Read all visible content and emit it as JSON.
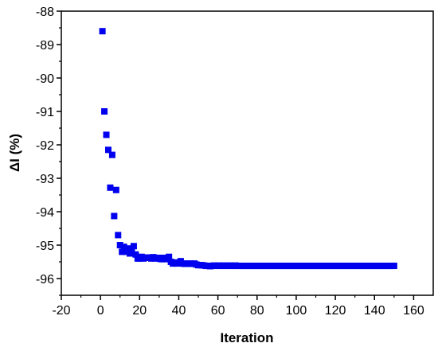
{
  "chart_data": {
    "type": "scatter",
    "xlabel": "Iteration",
    "ylabel": "ΔI (%)",
    "xlim": [
      -20,
      170
    ],
    "ylim": [
      -96.5,
      -88
    ],
    "x_ticks": [
      -20,
      0,
      20,
      40,
      60,
      80,
      100,
      120,
      140,
      160
    ],
    "y_ticks": [
      -96,
      -95,
      -94,
      -93,
      -92,
      -91,
      -90,
      -89,
      -88
    ],
    "marker_color": "#0000ee",
    "marker": "square",
    "grid": false,
    "series": [
      {
        "points": [
          [
            1,
            -88.6
          ],
          [
            2,
            -91.0
          ],
          [
            3,
            -91.7
          ],
          [
            4,
            -92.15
          ],
          [
            5,
            -93.28
          ],
          [
            6,
            -92.3
          ],
          [
            7,
            -94.13
          ],
          [
            8,
            -93.35
          ],
          [
            9,
            -94.7
          ],
          [
            10,
            -95.0
          ],
          [
            11,
            -95.2
          ],
          [
            12,
            -95.05
          ],
          [
            13,
            -95.2
          ],
          [
            14,
            -95.1
          ],
          [
            15,
            -95.25
          ],
          [
            16,
            -95.2
          ],
          [
            17,
            -95.03
          ],
          [
            18,
            -95.28
          ],
          [
            19,
            -95.4
          ],
          [
            20,
            -95.4
          ],
          [
            21,
            -95.35
          ],
          [
            22,
            -95.4
          ],
          [
            23,
            -95.38
          ],
          [
            24,
            -95.37
          ],
          [
            25,
            -95.37
          ],
          [
            26,
            -95.4
          ],
          [
            27,
            -95.36
          ],
          [
            28,
            -95.4
          ],
          [
            29,
            -95.38
          ],
          [
            30,
            -95.4
          ],
          [
            31,
            -95.42
          ],
          [
            32,
            -95.38
          ],
          [
            33,
            -95.42
          ],
          [
            34,
            -95.4
          ],
          [
            35,
            -95.35
          ],
          [
            36,
            -95.5
          ],
          [
            37,
            -95.55
          ],
          [
            38,
            -95.52
          ],
          [
            39,
            -95.55
          ],
          [
            40,
            -95.52
          ],
          [
            41,
            -95.48
          ],
          [
            42,
            -95.55
          ],
          [
            43,
            -95.56
          ],
          [
            44,
            -95.55
          ],
          [
            45,
            -95.56
          ],
          [
            46,
            -95.55
          ],
          [
            47,
            -95.56
          ],
          [
            48,
            -95.55
          ],
          [
            49,
            -95.58
          ],
          [
            50,
            -95.6
          ],
          [
            51,
            -95.6
          ],
          [
            52,
            -95.6
          ],
          [
            53,
            -95.61
          ],
          [
            54,
            -95.62
          ],
          [
            55,
            -95.62
          ],
          [
            56,
            -95.63
          ],
          [
            57,
            -95.62
          ],
          [
            58,
            -95.61
          ],
          [
            59,
            -95.62
          ],
          [
            60,
            -95.61
          ],
          [
            61,
            -95.62
          ],
          [
            62,
            -95.62
          ],
          [
            63,
            -95.61
          ],
          [
            64,
            -95.62
          ],
          [
            65,
            -95.62
          ],
          [
            66,
            -95.61
          ],
          [
            67,
            -95.62
          ],
          [
            68,
            -95.62
          ],
          [
            69,
            -95.61
          ],
          [
            70,
            -95.62
          ],
          [
            71,
            -95.62
          ],
          [
            72,
            -95.62
          ],
          [
            73,
            -95.62
          ],
          [
            74,
            -95.62
          ],
          [
            75,
            -95.62
          ],
          [
            76,
            -95.62
          ],
          [
            77,
            -95.62
          ],
          [
            78,
            -95.62
          ],
          [
            79,
            -95.62
          ],
          [
            80,
            -95.62
          ],
          [
            81,
            -95.62
          ],
          [
            82,
            -95.62
          ],
          [
            83,
            -95.62
          ],
          [
            84,
            -95.62
          ],
          [
            85,
            -95.62
          ],
          [
            86,
            -95.62
          ],
          [
            87,
            -95.62
          ],
          [
            88,
            -95.62
          ],
          [
            89,
            -95.62
          ],
          [
            90,
            -95.62
          ],
          [
            91,
            -95.62
          ],
          [
            92,
            -95.62
          ],
          [
            93,
            -95.62
          ],
          [
            94,
            -95.62
          ],
          [
            95,
            -95.62
          ],
          [
            96,
            -95.62
          ],
          [
            97,
            -95.62
          ],
          [
            98,
            -95.62
          ],
          [
            99,
            -95.62
          ],
          [
            100,
            -95.62
          ],
          [
            101,
            -95.62
          ],
          [
            102,
            -95.62
          ],
          [
            103,
            -95.62
          ],
          [
            104,
            -95.62
          ],
          [
            105,
            -95.62
          ],
          [
            106,
            -95.62
          ],
          [
            107,
            -95.62
          ],
          [
            108,
            -95.62
          ],
          [
            109,
            -95.62
          ],
          [
            110,
            -95.62
          ],
          [
            111,
            -95.62
          ],
          [
            112,
            -95.62
          ],
          [
            113,
            -95.62
          ],
          [
            114,
            -95.62
          ],
          [
            115,
            -95.62
          ],
          [
            116,
            -95.62
          ],
          [
            117,
            -95.62
          ],
          [
            118,
            -95.62
          ],
          [
            119,
            -95.62
          ],
          [
            120,
            -95.62
          ],
          [
            121,
            -95.62
          ],
          [
            122,
            -95.62
          ],
          [
            123,
            -95.62
          ],
          [
            124,
            -95.62
          ],
          [
            125,
            -95.62
          ],
          [
            126,
            -95.62
          ],
          [
            127,
            -95.62
          ],
          [
            128,
            -95.62
          ],
          [
            129,
            -95.62
          ],
          [
            130,
            -95.62
          ],
          [
            131,
            -95.62
          ],
          [
            132,
            -95.62
          ],
          [
            133,
            -95.62
          ],
          [
            134,
            -95.62
          ],
          [
            135,
            -95.62
          ],
          [
            136,
            -95.62
          ],
          [
            137,
            -95.62
          ],
          [
            138,
            -95.62
          ],
          [
            139,
            -95.62
          ],
          [
            140,
            -95.62
          ],
          [
            141,
            -95.62
          ],
          [
            142,
            -95.62
          ],
          [
            143,
            -95.62
          ],
          [
            144,
            -95.62
          ],
          [
            145,
            -95.62
          ],
          [
            146,
            -95.62
          ],
          [
            147,
            -95.62
          ],
          [
            148,
            -95.62
          ],
          [
            149,
            -95.62
          ],
          [
            150,
            -95.62
          ]
        ]
      }
    ]
  }
}
